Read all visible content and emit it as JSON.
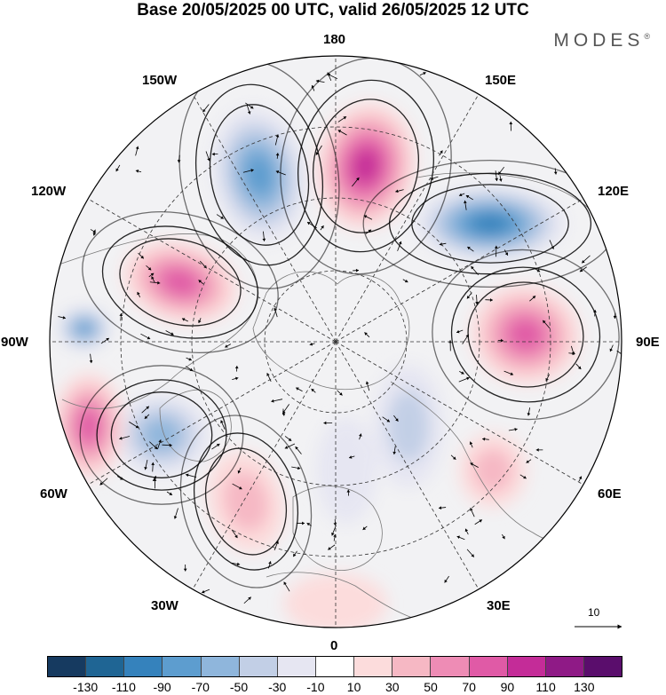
{
  "title": "Base 20/05/2025 00 UTC, valid 26/05/2025 12 UTC",
  "brand": "MODES",
  "brand_mark": "®",
  "longitude_labels": {
    "lon_180": "180",
    "lon_150e": "150E",
    "lon_120e": "120E",
    "lon_90e": "90E",
    "lon_60e": "60E",
    "lon_30e": "30E",
    "lon_0": "0",
    "lon_30w": "30W",
    "lon_60w": "60W",
    "lon_90w": "90W",
    "lon_120w": "120W",
    "lon_150w": "150W"
  },
  "wind_reference_label": "10",
  "colorbar": {
    "colors": [
      "#163a60",
      "#1f6594",
      "#3582bc",
      "#5d9dcf",
      "#8fb6dc",
      "#c2cfe6",
      "#e6e6f2",
      "#ffffff",
      "#fcdcdc",
      "#f6b8c4",
      "#ee8cb5",
      "#e05aa6",
      "#c42c98",
      "#8f1a86",
      "#5a0d6c"
    ],
    "tick_labels": [
      "-130",
      "-110",
      "-90",
      "-70",
      "-50",
      "-30",
      "-10",
      "10",
      "30",
      "50",
      "70",
      "90",
      "110",
      "130"
    ]
  },
  "anomaly_features": [
    {
      "type": "low",
      "level": -90
    },
    {
      "type": "high",
      "level": 110
    },
    {
      "type": "low",
      "level": -110
    },
    {
      "type": "high",
      "level": 90
    },
    {
      "type": "high",
      "level": 90
    },
    {
      "type": "low",
      "level": -70
    },
    {
      "type": "high",
      "level": 50
    },
    {
      "type": "low",
      "level": -90
    },
    {
      "type": "high",
      "level": 90
    },
    {
      "type": "low",
      "level": -50
    },
    {
      "type": "high",
      "level": 50
    },
    {
      "type": "low",
      "level": -30
    },
    {
      "type": "high",
      "level": 30
    }
  ]
}
